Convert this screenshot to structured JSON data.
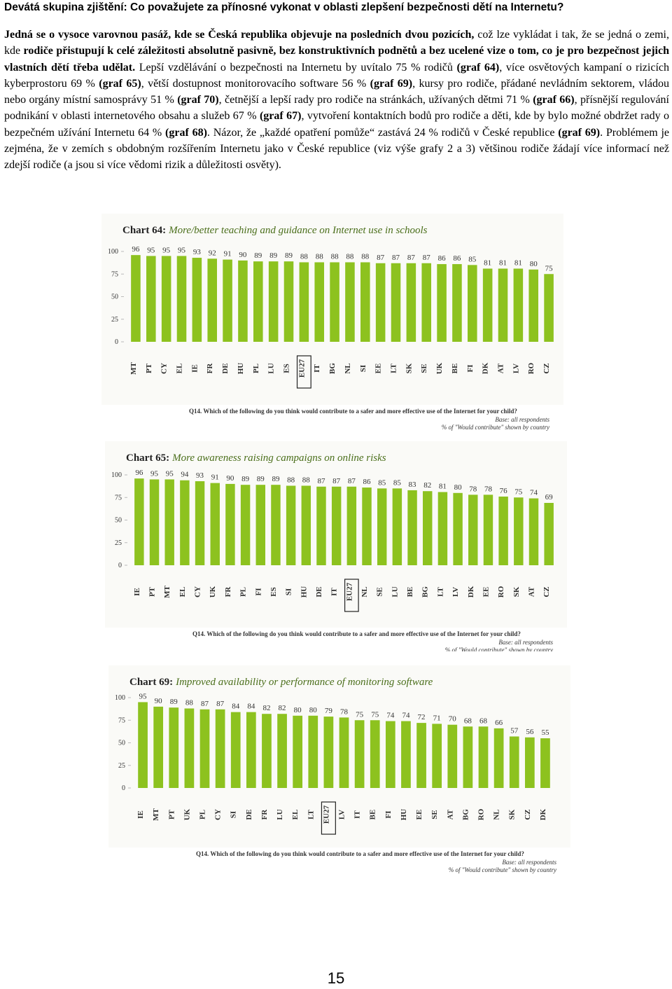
{
  "heading": "Devátá skupina zjištění: Co považujete za přínosné vykonat v oblasti zlepšení bezpečnosti dětí na Internetu?",
  "paragraph": [
    {
      "text": "Jedná se o vysoce varovnou pasáž, kde se Česká republika objevuje na posledních dvou pozicích,",
      "bold": true
    },
    {
      "text": " což lze vykládat i tak, že se jedná o zemi, kde ",
      "bold": false
    },
    {
      "text": "rodiče přistupují k celé záležitosti absolutně pasivně, bez konstruktivních podnětů a bez ucelené vize o tom, co je pro bezpečnost jejich vlastních dětí třeba udělat.",
      "bold": true
    },
    {
      "text": " Lepší vzdělávání o bezpečnosti na Internetu by uvítalo 75 % rodičů ",
      "bold": false
    },
    {
      "text": "(graf 64)",
      "bold": true
    },
    {
      "text": ", více osvětových kampaní o rizicích kyberprostoru 69 % ",
      "bold": false
    },
    {
      "text": "(graf 65)",
      "bold": true
    },
    {
      "text": ", větší dostupnost monitorovacího software 56 % ",
      "bold": false
    },
    {
      "text": "(graf 69)",
      "bold": true
    },
    {
      "text": ", kursy pro rodiče, přádané nevládním sektorem, vládou nebo orgány místní samosprávy 51 % ",
      "bold": false
    },
    {
      "text": "(graf 70)",
      "bold": true
    },
    {
      "text": ", četnější a lepší rady pro rodiče na stránkách, užívaných dětmi 71 % ",
      "bold": false
    },
    {
      "text": "(graf 66)",
      "bold": true
    },
    {
      "text": ", přísnější regulování podnikání v oblasti internetového obsahu a služeb 67 % ",
      "bold": false
    },
    {
      "text": "(graf 67)",
      "bold": true
    },
    {
      "text": ", vytvoření kontaktních bodů pro rodiče a děti, kde by bylo možné obdržet rady o bezpečném užívání Internetu 64 % ",
      "bold": false
    },
    {
      "text": "(graf 68)",
      "bold": true
    },
    {
      "text": ". Názor, že „každé opatření pomůže“ zastává 24 % rodičů v České republice ",
      "bold": false
    },
    {
      "text": "(graf 69)",
      "bold": true
    },
    {
      "text": ". Problémem je zejména, že v zemích s obdobným rozšířením Internetu jako v České republice (viz výše grafy 2 a 3) většinou rodiče žádají více informací než zdejší rodiče  (a jsou si více vědomi rizik a důležitosti osvěty).",
      "bold": false
    }
  ],
  "chart_data": [
    {
      "type": "bar",
      "title_label": "Chart 64:",
      "title": "More/better teaching and guidance on Internet use in schools",
      "categories": [
        "MT",
        "PT",
        "CY",
        "EL",
        "IE",
        "FR",
        "DE",
        "HU",
        "PL",
        "LU",
        "ES",
        "EU27",
        "IT",
        "BG",
        "NL",
        "SI",
        "EE",
        "LT",
        "SK",
        "SE",
        "UK",
        "BE",
        "FI",
        "DK",
        "AT",
        "LV",
        "RO",
        "CZ"
      ],
      "values": [
        96,
        95,
        95,
        95,
        93,
        92,
        91,
        90,
        89,
        89,
        89,
        88,
        88,
        88,
        88,
        88,
        87,
        87,
        87,
        87,
        86,
        86,
        85,
        81,
        81,
        81,
        80,
        75
      ],
      "color": "#8dc21f",
      "highlight": "EU27",
      "ylim": [
        0,
        100
      ],
      "yticks": [
        0,
        25,
        50,
        75,
        100
      ],
      "question": "Q14. Which of the following do you think would contribute to a safer and more effective use of the Internet for your child?",
      "base": "Base: all respondents",
      "note": "% of \"Would contribute\" shown by country"
    },
    {
      "type": "bar",
      "title_label": "Chart 65:",
      "title": "More awareness raising campaigns on online risks",
      "categories": [
        "IE",
        "PT",
        "MT",
        "EL",
        "CY",
        "UK",
        "FR",
        "PL",
        "FI",
        "ES",
        "SI",
        "HU",
        "DE",
        "IT",
        "EU27",
        "NL",
        "SE",
        "LU",
        "BE",
        "BG",
        "LT",
        "LV",
        "DK",
        "EE",
        "RO",
        "SK",
        "AT",
        "CZ"
      ],
      "values": [
        96,
        95,
        95,
        94,
        93,
        91,
        90,
        89,
        89,
        89,
        88,
        88,
        87,
        87,
        87,
        86,
        85,
        85,
        83,
        82,
        81,
        80,
        78,
        78,
        76,
        75,
        74,
        69
      ],
      "color": "#8dc21f",
      "highlight": "EU27",
      "ylim": [
        0,
        100
      ],
      "yticks": [
        0,
        25,
        50,
        75,
        100
      ],
      "question": "Q14. Which of the following do you think would contribute to a safer and more effective use of the Internet for your child?",
      "base": "Base: all respondents",
      "note": "% of \"Would contribute\" shown by country"
    },
    {
      "type": "bar",
      "title_label": "Chart 69:",
      "title": "Improved availability or performance of monitoring software",
      "categories": [
        "IE",
        "MT",
        "PT",
        "UK",
        "PL",
        "CY",
        "SI",
        "DE",
        "FR",
        "LU",
        "EL",
        "LT",
        "EU27",
        "LV",
        "IT",
        "BE",
        "FI",
        "HU",
        "EE",
        "SE",
        "AT",
        "BG",
        "RO",
        "NL",
        "SK",
        "CZ",
        "DK"
      ],
      "values": [
        95,
        90,
        89,
        88,
        87,
        87,
        84,
        84,
        82,
        82,
        80,
        80,
        79,
        78,
        75,
        75,
        74,
        74,
        72,
        71,
        70,
        68,
        68,
        66,
        57,
        56,
        55
      ],
      "color": "#8dc21f",
      "highlight": "EU27",
      "ylim": [
        0,
        100
      ],
      "yticks": [
        0,
        25,
        50,
        75,
        100
      ],
      "question": "Q14. Which of the following do you think would contribute to a safer and more effective use of the Internet for your child?",
      "base": "Base: all respondents",
      "note": "% of \"Would contribute\" shown by country"
    }
  ],
  "page_number": "15"
}
